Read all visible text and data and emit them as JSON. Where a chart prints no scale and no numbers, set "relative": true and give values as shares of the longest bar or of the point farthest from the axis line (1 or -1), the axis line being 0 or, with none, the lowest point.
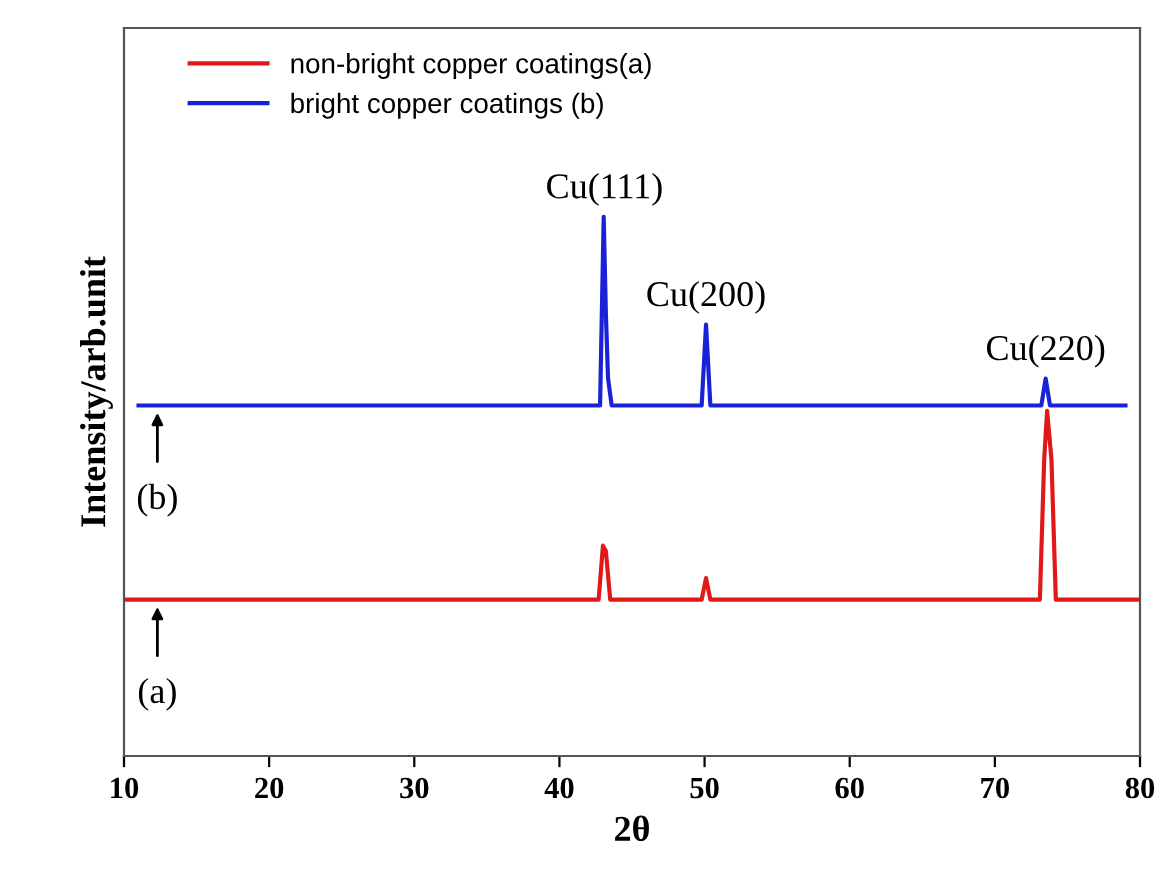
{
  "chart_data": {
    "type": "line",
    "relative": true,
    "xlabel": "2θ",
    "ylabel": "Intensity/arb.unit",
    "xlim": [
      10,
      80
    ],
    "xticks": [
      10,
      20,
      30,
      40,
      50,
      60,
      70,
      80
    ],
    "legend": "top left",
    "grid": false,
    "tick_labels": "x",
    "series": [
      {
        "name": "non-bright copper coatings(a)",
        "color": "#e01818",
        "x": [
          10,
          20,
          30,
          42.7,
          43.0,
          43.2,
          43.5,
          49.8,
          50.1,
          50.4,
          73.1,
          73.4,
          73.6,
          73.9,
          74.2,
          80
        ],
        "values": [
          0.29,
          0.29,
          0.29,
          0.29,
          0.39,
          0.38,
          0.29,
          0.29,
          0.33,
          0.29,
          0.29,
          0.55,
          0.64,
          0.55,
          0.29,
          0.29
        ]
      },
      {
        "name": "bright copper coatings (b)",
        "color": "#1a22d8",
        "x": [
          11,
          20,
          30,
          42.8,
          43.05,
          43.2,
          43.35,
          43.6,
          49.8,
          50.1,
          50.4,
          73.2,
          73.5,
          73.8,
          79
        ],
        "values": [
          0.65,
          0.65,
          0.65,
          0.65,
          1.0,
          0.82,
          0.7,
          0.65,
          0.65,
          0.8,
          0.65,
          0.65,
          0.7,
          0.65,
          0.65
        ]
      }
    ],
    "annotations": [
      {
        "text": "Cu(111)",
        "x": 43.1,
        "y": 1.0
      },
      {
        "text": "Cu(200)",
        "x": 50.1,
        "y": 0.8
      },
      {
        "text": "Cu(220)",
        "x": 73.5,
        "y": 0.7
      },
      {
        "text": "(b)",
        "x": 12.3,
        "y": 0.65
      },
      {
        "text": "(a)",
        "x": 12.3,
        "y": 0.29
      }
    ]
  }
}
